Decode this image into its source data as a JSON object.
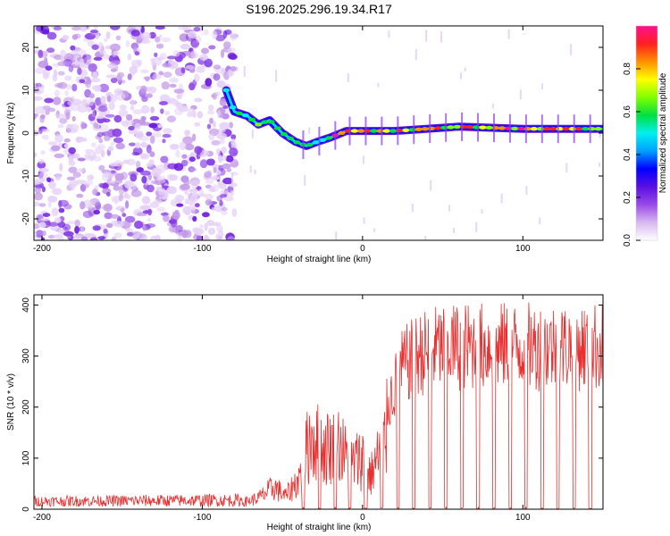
{
  "title": "S196.2025.296.19.34.R17",
  "chart_data": [
    {
      "type": "heatmap",
      "name": "spectrogram",
      "xlabel": "Height of straight line (km)",
      "ylabel": "Frequency (Hz)",
      "xlim": [
        -205,
        150
      ],
      "ylim": [
        -25,
        25
      ],
      "xticks": [
        -200,
        -100,
        0,
        100
      ],
      "yticks": [
        -20,
        -10,
        0,
        10,
        20
      ],
      "colorbar": {
        "label": "Normalized spectral amplitude",
        "range": [
          0,
          1
        ],
        "ticks": [
          0.0,
          0.2,
          0.4,
          0.6,
          0.8
        ],
        "tick_labels": [
          "0.0",
          "0.2",
          "0.4",
          "0.6",
          "0.8"
        ],
        "colors": [
          "#ffffff",
          "#d8b8f0",
          "#9a4ae8",
          "#5a10e0",
          "#0000ff",
          "#00a0ff",
          "#00f0f0",
          "#00e040",
          "#80ff00",
          "#ffff00",
          "#ff9000",
          "#ff2020",
          "#ff1090"
        ]
      },
      "noise_region_x": [
        -205,
        -85
      ],
      "tone_start_x": -85,
      "tone_path": [
        {
          "x": -85,
          "y": 10
        },
        {
          "x": -80,
          "y": 5
        },
        {
          "x": -72,
          "y": 4
        },
        {
          "x": -65,
          "y": 2
        },
        {
          "x": -58,
          "y": 3
        },
        {
          "x": -50,
          "y": 0
        },
        {
          "x": -42,
          "y": -2
        },
        {
          "x": -35,
          "y": -3
        },
        {
          "x": -28,
          "y": -2
        },
        {
          "x": -20,
          "y": -1
        },
        {
          "x": -10,
          "y": 0.5
        },
        {
          "x": 0,
          "y": 0.5
        },
        {
          "x": 20,
          "y": 0.5
        },
        {
          "x": 60,
          "y": 1.5
        },
        {
          "x": 100,
          "y": 1
        },
        {
          "x": 150,
          "y": 1
        }
      ]
    },
    {
      "type": "line",
      "name": "snr",
      "xlabel": "Height of straight line (km)",
      "ylabel": "SNR (10 * v/v)",
      "xlim": [
        -205,
        150
      ],
      "ylim": [
        0,
        420
      ],
      "xticks": [
        -200,
        -100,
        0,
        100
      ],
      "yticks": [
        0,
        100,
        200,
        300,
        400
      ],
      "color": "#e83030",
      "envelope": [
        {
          "x": -205,
          "y": 15
        },
        {
          "x": -75,
          "y": 18
        },
        {
          "x": -65,
          "y": 30
        },
        {
          "x": -55,
          "y": 60
        },
        {
          "x": -48,
          "y": 35
        },
        {
          "x": -40,
          "y": 80
        },
        {
          "x": -32,
          "y": 200
        },
        {
          "x": -25,
          "y": 160
        },
        {
          "x": -15,
          "y": 180
        },
        {
          "x": -8,
          "y": 120
        },
        {
          "x": 0,
          "y": 140
        },
        {
          "x": 5,
          "y": 90
        },
        {
          "x": 15,
          "y": 200
        },
        {
          "x": 25,
          "y": 280
        },
        {
          "x": 35,
          "y": 305
        },
        {
          "x": 50,
          "y": 320
        },
        {
          "x": 80,
          "y": 320
        },
        {
          "x": 110,
          "y": 320
        },
        {
          "x": 150,
          "y": 320
        }
      ],
      "dropout_x": [
        -37,
        -27,
        -17,
        -8,
        2,
        12,
        22,
        32,
        42,
        52,
        62,
        72,
        82,
        92,
        102,
        112,
        122,
        132,
        142
      ]
    }
  ]
}
